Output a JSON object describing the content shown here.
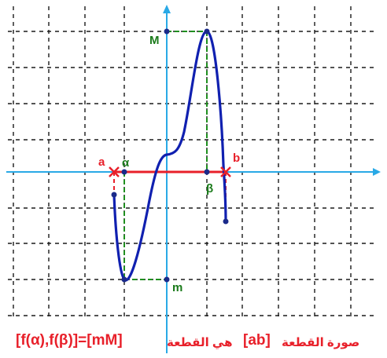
{
  "colors": {
    "grid": "#1a1a1a",
    "axis": "#29a9e6",
    "curve": "#1020b0",
    "segment_ab": "#e8202a",
    "guide": "#1f8f1f",
    "point": "#1a2a8a",
    "label_green": "#1a7a1a",
    "label_red": "#e8202a",
    "caption_red": "#e8202a"
  },
  "labels": {
    "M": "M",
    "m": "m",
    "a": "a",
    "b": "b",
    "alpha": "α",
    "beta": "β"
  },
  "caption": {
    "interval": "[f(α),f(β)]=[mM]",
    "middle": "هي القطعة",
    "segment": "[ab]",
    "start": "صورة القطعة"
  }
}
